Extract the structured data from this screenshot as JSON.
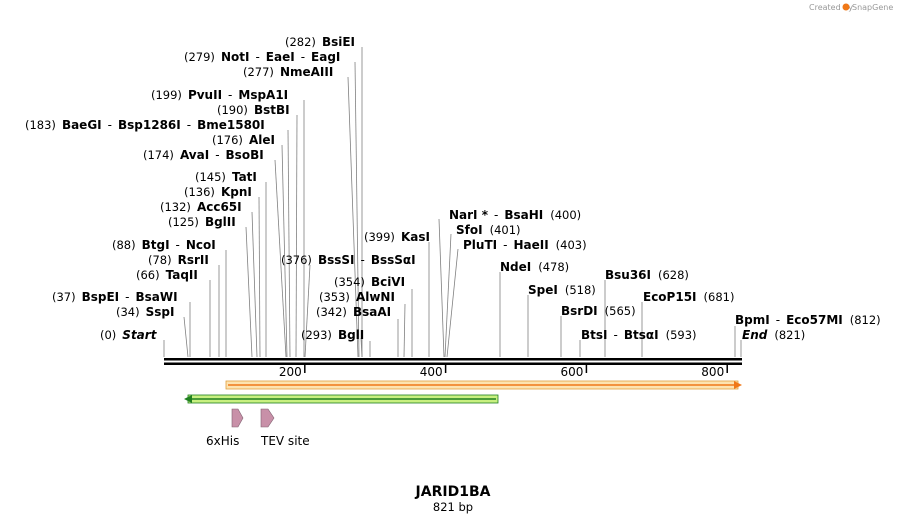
{
  "branding": {
    "created_by": "Created by",
    "app": "SnapGene"
  },
  "construct": {
    "name": "JARID1BA",
    "length_label": "821 bp"
  },
  "ruler": {
    "ticks": [
      {
        "pos": 200,
        "label": "200"
      },
      {
        "pos": 400,
        "label": "400"
      },
      {
        "pos": 600,
        "label": "600"
      },
      {
        "pos": 800,
        "label": "800"
      }
    ]
  },
  "features": [
    {
      "name": "6xHis",
      "type": "tag"
    },
    {
      "name": "TEV site",
      "type": "site"
    }
  ],
  "enzyme_labels": [
    {
      "id": "bsiei",
      "parts": [
        {
          "t": "(282)",
          "c": "num"
        },
        {
          "t": "BsiEI",
          "c": "enz"
        }
      ]
    },
    {
      "id": "noti",
      "parts": [
        {
          "t": "(279)",
          "c": "num"
        },
        {
          "t": "NotI",
          "c": "enz"
        },
        {
          "t": "-",
          "c": "sep"
        },
        {
          "t": "EaeI",
          "c": "enz"
        },
        {
          "t": "-",
          "c": "sep"
        },
        {
          "t": "EagI",
          "c": "enz"
        }
      ]
    },
    {
      "id": "nmeaiii",
      "parts": [
        {
          "t": "(277)",
          "c": "num"
        },
        {
          "t": "NmeAIII",
          "c": "enz"
        }
      ]
    },
    {
      "id": "pvuii",
      "parts": [
        {
          "t": "(199)",
          "c": "num"
        },
        {
          "t": "PvuII",
          "c": "enz"
        },
        {
          "t": "-",
          "c": "sep"
        },
        {
          "t": "MspA1I",
          "c": "enz"
        }
      ]
    },
    {
      "id": "bstbi",
      "parts": [
        {
          "t": "(190)",
          "c": "num"
        },
        {
          "t": "BstBI",
          "c": "enz"
        }
      ]
    },
    {
      "id": "baegi",
      "parts": [
        {
          "t": "(183)",
          "c": "num"
        },
        {
          "t": "BaeGI",
          "c": "enz"
        },
        {
          "t": "-",
          "c": "sep"
        },
        {
          "t": "Bsp1286I",
          "c": "enz"
        },
        {
          "t": "-",
          "c": "sep"
        },
        {
          "t": "Bme1580I",
          "c": "enz"
        }
      ]
    },
    {
      "id": "alei",
      "parts": [
        {
          "t": "(176)",
          "c": "num"
        },
        {
          "t": "AleI",
          "c": "enz"
        }
      ]
    },
    {
      "id": "avai",
      "parts": [
        {
          "t": "(174)",
          "c": "num"
        },
        {
          "t": "AvaI",
          "c": "enz"
        },
        {
          "t": "-",
          "c": "sep"
        },
        {
          "t": "BsoBI",
          "c": "enz"
        }
      ]
    },
    {
      "id": "tati",
      "parts": [
        {
          "t": "(145)",
          "c": "num"
        },
        {
          "t": "TatI",
          "c": "enz"
        }
      ]
    },
    {
      "id": "kpni",
      "parts": [
        {
          "t": "(136)",
          "c": "num"
        },
        {
          "t": "KpnI",
          "c": "enz"
        }
      ]
    },
    {
      "id": "acc65i",
      "parts": [
        {
          "t": "(132)",
          "c": "num"
        },
        {
          "t": "Acc65I",
          "c": "enz"
        }
      ]
    },
    {
      "id": "bglii",
      "parts": [
        {
          "t": "(125)",
          "c": "num"
        },
        {
          "t": "BglII",
          "c": "enz"
        }
      ]
    },
    {
      "id": "btgi",
      "parts": [
        {
          "t": "(88)",
          "c": "num"
        },
        {
          "t": "BtgI",
          "c": "enz"
        },
        {
          "t": "-",
          "c": "sep"
        },
        {
          "t": "NcoI",
          "c": "enz"
        }
      ]
    },
    {
      "id": "rsrii",
      "parts": [
        {
          "t": "(78)",
          "c": "num"
        },
        {
          "t": "RsrII",
          "c": "enz"
        }
      ]
    },
    {
      "id": "taqii",
      "parts": [
        {
          "t": "(66)",
          "c": "num"
        },
        {
          "t": "TaqII",
          "c": "enz"
        }
      ]
    },
    {
      "id": "bspei",
      "parts": [
        {
          "t": "(37)",
          "c": "num"
        },
        {
          "t": "BspEI",
          "c": "enz"
        },
        {
          "t": "-",
          "c": "sep"
        },
        {
          "t": "BsaWI",
          "c": "enz"
        }
      ]
    },
    {
      "id": "sspi",
      "parts": [
        {
          "t": "(34)",
          "c": "num"
        },
        {
          "t": "SspI",
          "c": "enz"
        }
      ]
    },
    {
      "id": "start",
      "parts": [
        {
          "t": "(0)",
          "c": "num"
        },
        {
          "t": "Start",
          "c": "ital"
        }
      ]
    },
    {
      "id": "bsssi",
      "parts": [
        {
          "t": "(376)",
          "c": "num"
        },
        {
          "t": "BssSI",
          "c": "enz"
        },
        {
          "t": "-",
          "c": "sep"
        },
        {
          "t": "BssSαI",
          "c": "enz"
        }
      ]
    },
    {
      "id": "bcivi",
      "parts": [
        {
          "t": "(354)",
          "c": "num"
        },
        {
          "t": "BciVI",
          "c": "enz"
        }
      ]
    },
    {
      "id": "alwni",
      "parts": [
        {
          "t": "(353)",
          "c": "num"
        },
        {
          "t": "AlwNI",
          "c": "enz"
        }
      ]
    },
    {
      "id": "bsaai",
      "parts": [
        {
          "t": "(342)",
          "c": "num"
        },
        {
          "t": "BsaAI",
          "c": "enz"
        }
      ]
    },
    {
      "id": "bgli",
      "parts": [
        {
          "t": "(293)",
          "c": "num"
        },
        {
          "t": "BglI",
          "c": "enz"
        }
      ]
    },
    {
      "id": "kasi",
      "parts": [
        {
          "t": "(399)",
          "c": "num"
        },
        {
          "t": "KasI",
          "c": "enz"
        }
      ]
    },
    {
      "id": "nari",
      "parts": [
        {
          "t": "NarI *",
          "c": "enz"
        },
        {
          "t": "-",
          "c": "sep"
        },
        {
          "t": "BsaHI",
          "c": "enz"
        },
        {
          "t": "(400)",
          "c": "num"
        }
      ]
    },
    {
      "id": "sfoi",
      "parts": [
        {
          "t": "SfoI",
          "c": "enz"
        },
        {
          "t": "(401)",
          "c": "num"
        }
      ]
    },
    {
      "id": "pluti",
      "parts": [
        {
          "t": "PluTI",
          "c": "enz"
        },
        {
          "t": "-",
          "c": "sep"
        },
        {
          "t": "HaeII",
          "c": "enz"
        },
        {
          "t": "(403)",
          "c": "num"
        }
      ]
    },
    {
      "id": "ndei",
      "parts": [
        {
          "t": "NdeI",
          "c": "enz"
        },
        {
          "t": "(478)",
          "c": "num"
        }
      ]
    },
    {
      "id": "spei",
      "parts": [
        {
          "t": "SpeI",
          "c": "enz"
        },
        {
          "t": "(518)",
          "c": "num"
        }
      ]
    },
    {
      "id": "bsrdi",
      "parts": [
        {
          "t": "BsrDI",
          "c": "enz"
        },
        {
          "t": "(565)",
          "c": "num"
        }
      ]
    },
    {
      "id": "btsi",
      "parts": [
        {
          "t": "BtsI",
          "c": "enz"
        },
        {
          "t": "-",
          "c": "sep"
        },
        {
          "t": "BtsαI",
          "c": "enz"
        },
        {
          "t": "(593)",
          "c": "num"
        }
      ]
    },
    {
      "id": "bsu36i",
      "parts": [
        {
          "t": "Bsu36I",
          "c": "enz"
        },
        {
          "t": "(628)",
          "c": "num"
        }
      ]
    },
    {
      "id": "ecop15i",
      "parts": [
        {
          "t": "EcoP15I",
          "c": "enz"
        },
        {
          "t": "(681)",
          "c": "num"
        }
      ]
    },
    {
      "id": "bpmi",
      "parts": [
        {
          "t": "BpmI",
          "c": "enz"
        },
        {
          "t": "-",
          "c": "sep"
        },
        {
          "t": "Eco57MI",
          "c": "enz"
        },
        {
          "t": "(812)",
          "c": "num"
        }
      ]
    },
    {
      "id": "end",
      "parts": [
        {
          "t": "End",
          "c": "ital"
        },
        {
          "t": "(821)",
          "c": "num"
        }
      ]
    }
  ],
  "colors": {
    "orf_fill": "#fde3b0",
    "orf_stroke": "#e0a040",
    "orf_line": "#f07818",
    "green_fill": "#c8f080",
    "green_stroke": "#208020",
    "feature_fill": "#c890a8"
  }
}
